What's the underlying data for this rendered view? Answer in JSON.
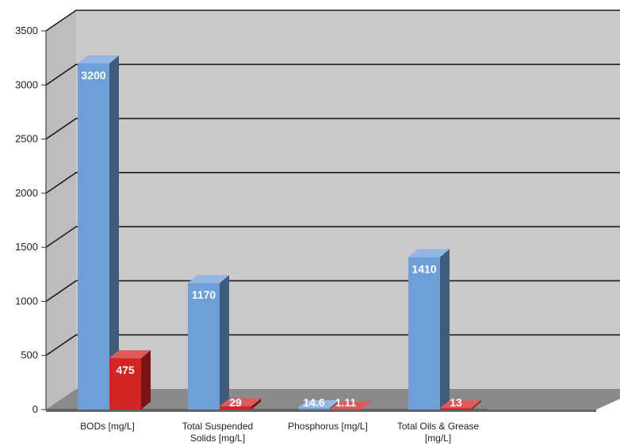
{
  "chart_data": {
    "type": "bar",
    "categories": [
      [
        "BODs [mg/L]"
      ],
      [
        "Total Suspended",
        "Solids [mg/L]"
      ],
      [
        "Phosphorus [mg/L]"
      ],
      [
        "Total Oils & Grease",
        "[mg/L]"
      ]
    ],
    "series": [
      {
        "values": [
          3200,
          1170,
          14.6,
          1410
        ],
        "labels": [
          "3200",
          "1170",
          "14.6",
          "1410"
        ],
        "color": "#6f9fd8"
      },
      {
        "values": [
          475,
          29,
          1.11,
          13
        ],
        "labels": [
          "475",
          "29",
          "1.11",
          "13"
        ],
        "color": "#d42424"
      }
    ],
    "y_ticks": [
      "0",
      "500",
      "1000",
      "1500",
      "2000",
      "2500",
      "3000",
      "3500"
    ],
    "ylim": [
      0,
      3500
    ],
    "grid": true,
    "legend": "none",
    "title": "",
    "xlabel": "",
    "ylabel": "",
    "colors": {
      "wall": "#c9c9c9",
      "floor": "#8a8a8a",
      "grid": "#1e1e1e"
    }
  }
}
